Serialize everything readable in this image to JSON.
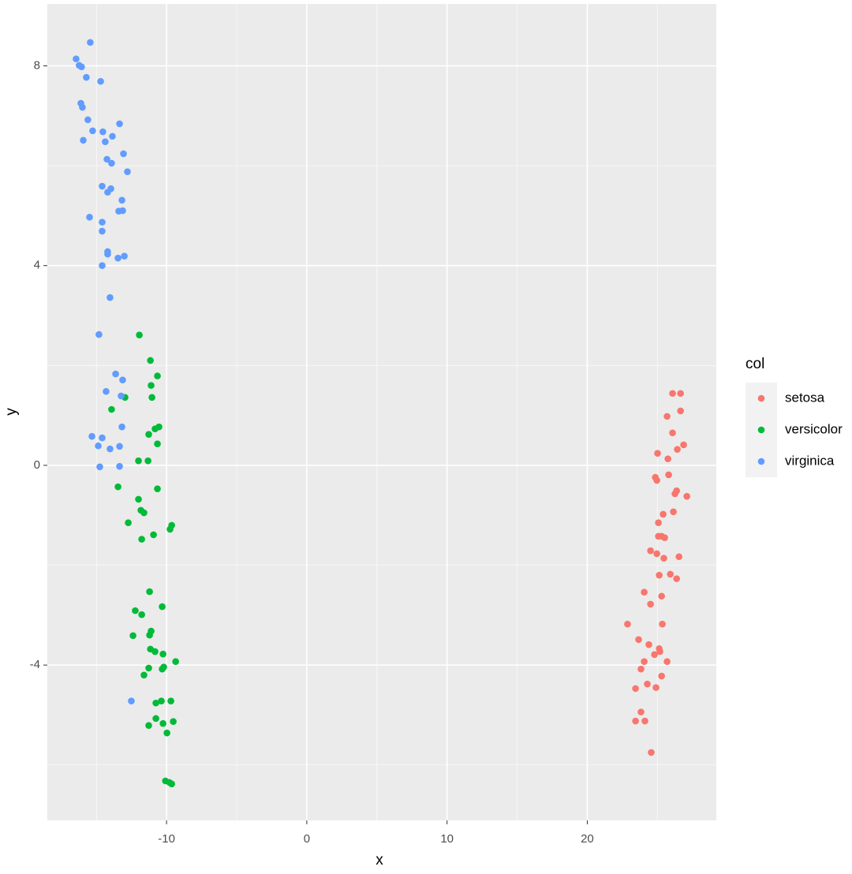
{
  "chart_data": {
    "type": "scatter",
    "xlabel": "x",
    "ylabel": "y",
    "legend_title": "col",
    "xlim": [
      -18.5,
      29.2
    ],
    "ylim": [
      -7.11,
      9.24
    ],
    "xticks": [
      -10,
      0,
      10,
      20
    ],
    "yticks": [
      -4,
      0,
      4,
      8
    ],
    "x_minor_breaks": [
      -15,
      -5,
      5,
      15,
      25
    ],
    "y_minor_breaks": [
      -6,
      -2,
      2,
      6
    ],
    "grid": true,
    "legend_position": "right",
    "series": [
      {
        "name": "setosa",
        "color": "#F8766D",
        "x": [
          26.08,
          26.65,
          26.65,
          25.69,
          26.08,
          26.87,
          26.42,
          25.01,
          25.75,
          27.1,
          25.8,
          24.85,
          24.96,
          26.37,
          26.25,
          26.14,
          25.41,
          25.07,
          25.3,
          25.07,
          25.52,
          24.51,
          24.96,
          26.54,
          25.46,
          25.92,
          25.13,
          26.37,
          24.06,
          25.3,
          24.51,
          22.87,
          25.35,
          23.66,
          24.39,
          25.13,
          25.18,
          24.79,
          25.69,
          24.06,
          23.83,
          25.3,
          24.28,
          24.9,
          23.44,
          23.83,
          23.44,
          24.11,
          24.56
        ],
        "y": [
          1.44,
          1.44,
          1.09,
          0.98,
          0.65,
          0.41,
          0.32,
          0.24,
          0.13,
          -0.62,
          -0.19,
          -0.24,
          -0.3,
          -0.51,
          -0.57,
          -0.93,
          -0.98,
          -1.15,
          -1.42,
          -1.42,
          -1.45,
          -1.71,
          -1.77,
          -1.83,
          -1.86,
          -2.18,
          -2.2,
          -2.27,
          -2.54,
          -2.62,
          -2.78,
          -3.18,
          -3.18,
          -3.49,
          -3.59,
          -3.67,
          -3.73,
          -3.79,
          -3.93,
          -3.93,
          -4.08,
          -4.22,
          -4.38,
          -4.45,
          -4.47,
          -4.94,
          -5.12,
          -5.12,
          -5.75
        ]
      },
      {
        "name": "versicolor",
        "color": "#00BA38",
        "x": [
          -11.94,
          -11.15,
          -10.65,
          -11.1,
          -11.04,
          -12.96,
          -13.92,
          -10.54,
          -10.82,
          -11.27,
          -10.65,
          -12.0,
          -11.32,
          -13.46,
          -10.65,
          -12.0,
          -11.83,
          -11.61,
          -12.73,
          -9.63,
          -9.75,
          -10.93,
          -11.77,
          -11.21,
          -10.31,
          -12.23,
          -11.77,
          -11.1,
          -11.21,
          -12.39,
          -11.15,
          -10.82,
          -10.25,
          -9.35,
          -10.2,
          -10.31,
          -11.27,
          -11.61,
          -10.37,
          -9.69,
          -10.76,
          -10.76,
          -10.25,
          -9.52,
          -11.27,
          -9.97,
          -10.08,
          -9.8,
          -9.63
        ],
        "y": [
          2.61,
          2.1,
          1.79,
          1.6,
          1.36,
          1.36,
          1.12,
          0.77,
          0.73,
          0.62,
          0.43,
          0.09,
          0.09,
          -0.43,
          -0.47,
          -0.68,
          -0.9,
          -0.95,
          -1.15,
          -1.2,
          -1.28,
          -1.39,
          -1.48,
          -2.53,
          -2.83,
          -2.91,
          -2.99,
          -3.32,
          -3.4,
          -3.41,
          -3.68,
          -3.73,
          -3.78,
          -3.93,
          -4.04,
          -4.08,
          -4.06,
          -4.2,
          -4.72,
          -4.72,
          -4.76,
          -5.07,
          -5.17,
          -5.13,
          -5.21,
          -5.36,
          -6.32,
          -6.35,
          -6.38
        ]
      },
      {
        "name": "virginica",
        "color": "#619CFF",
        "x": [
          -15.44,
          -16.45,
          -16.23,
          -16.06,
          -15.72,
          -14.7,
          -16.11,
          -16.0,
          -15.61,
          -13.35,
          -15.27,
          -14.54,
          -13.86,
          -14.37,
          -15.94,
          -13.07,
          -14.25,
          -13.92,
          -12.79,
          -14.59,
          -13.97,
          -14.2,
          -13.18,
          -13.13,
          -13.41,
          -15.49,
          -14.59,
          -14.59,
          -14.2,
          -14.2,
          -13.46,
          -13.01,
          -14.59,
          -14.03,
          -14.82,
          -13.63,
          -13.13,
          -14.31,
          -13.24,
          -13.18,
          -15.32,
          -14.59,
          -14.87,
          -14.03,
          -13.35,
          -14.76,
          -13.35,
          -12.51
        ],
        "y": [
          8.47,
          8.14,
          8.01,
          7.98,
          7.77,
          7.69,
          7.25,
          7.17,
          6.92,
          6.84,
          6.7,
          6.68,
          6.59,
          6.48,
          6.51,
          6.24,
          6.13,
          6.05,
          5.88,
          5.59,
          5.54,
          5.47,
          5.31,
          5.1,
          5.09,
          4.97,
          4.87,
          4.69,
          4.28,
          4.23,
          4.15,
          4.19,
          4.0,
          3.36,
          2.62,
          1.83,
          1.71,
          1.48,
          1.39,
          0.77,
          0.58,
          0.55,
          0.39,
          0.33,
          0.38,
          -0.03,
          -0.02,
          -4.72
        ]
      }
    ]
  }
}
